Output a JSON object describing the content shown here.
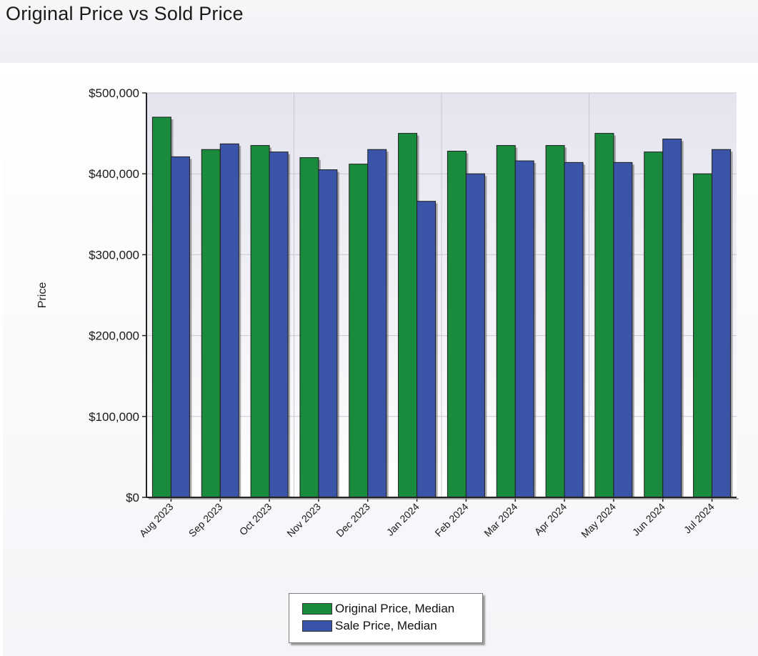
{
  "page": {
    "title": "Original Price vs Sold Price"
  },
  "colors": {
    "original": "#1a8a3c",
    "sale": "#3a55a8",
    "plot_bg_top": "#e4e4ef",
    "plot_bg_bottom": "#ffffff",
    "grid": "#c8c8d2",
    "axis": "#222222"
  },
  "chart_data": {
    "type": "bar",
    "title": "",
    "xlabel": "",
    "ylabel": "Price",
    "ylim": [
      0,
      500000
    ],
    "grid": true,
    "legend_position": "bottom",
    "y_ticks": [
      0,
      100000,
      200000,
      300000,
      400000,
      500000
    ],
    "y_tick_labels": [
      "$0",
      "$100,000",
      "$200,000",
      "$300,000",
      "$400,000",
      "$500,000"
    ],
    "categories": [
      "Aug 2023",
      "Sep 2023",
      "Oct 2023",
      "Nov 2023",
      "Dec 2023",
      "Jan 2024",
      "Feb 2024",
      "Mar 2024",
      "Apr 2024",
      "May 2024",
      "Jun 2024",
      "Jul 2024"
    ],
    "series": [
      {
        "name": "Original Price, Median",
        "values": [
          470000,
          430000,
          435000,
          420000,
          412000,
          450000,
          428000,
          435000,
          435000,
          450000,
          427000,
          400000
        ]
      },
      {
        "name": "Sale Price, Median",
        "values": [
          421000,
          437000,
          427000,
          405000,
          430000,
          366000,
          400000,
          416000,
          414000,
          414000,
          443000,
          430000
        ]
      }
    ]
  }
}
